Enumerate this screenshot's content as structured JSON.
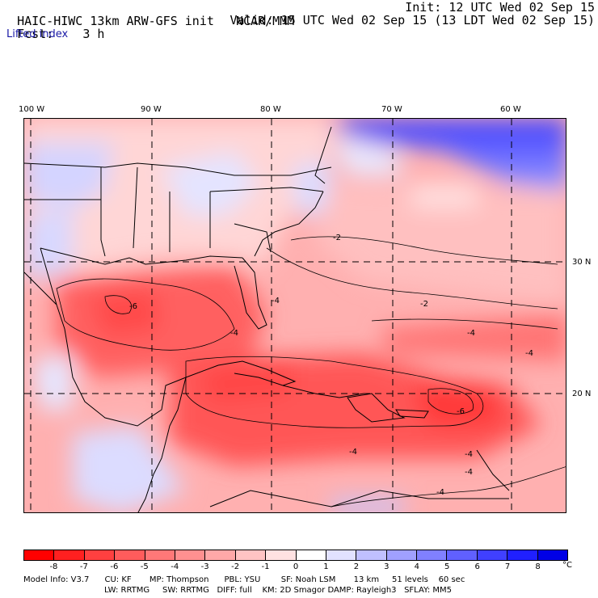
{
  "header": {
    "model_title": "HAIC-HIWC 13km ARW-GFS init",
    "org": "NCAR/MMM",
    "fcst_label": "Fcst:",
    "fcst_value": "3 h",
    "init": "Init: 12 UTC Wed 02 Sep 15",
    "valid": "Valid: 15 UTC Wed 02 Sep 15 (13 LDT Wed 02 Sep 15)",
    "field": "Lifted index"
  },
  "map": {
    "lon_labels": [
      "100 W",
      "90 W",
      "80 W",
      "70 W",
      "60 W"
    ],
    "lat_labels": [
      "30 N",
      "20 N"
    ],
    "contour_labels": [
      "-2",
      "-2",
      "-4",
      "-4",
      "-4",
      "-4",
      "-4",
      "-4",
      "-4",
      "-4",
      "-6",
      "-6"
    ]
  },
  "colorbar": {
    "labels": [
      "-8",
      "-7",
      "-6",
      "-5",
      "-4",
      "-3",
      "-2",
      "-1",
      "0",
      "1",
      "2",
      "3",
      "4",
      "5",
      "6",
      "7",
      "8"
    ],
    "unit": "°C",
    "colors": [
      "#ff0000",
      "#ff2020",
      "#ff4040",
      "#ff5c5c",
      "#ff7878",
      "#ff9090",
      "#ffa8a8",
      "#ffc4c4",
      "#ffe2e2",
      "#ffffff",
      "#e2e2ff",
      "#c0c0ff",
      "#a0a0ff",
      "#8080ff",
      "#6060ff",
      "#4040ff",
      "#2020ff",
      "#0000e6"
    ]
  },
  "footer": {
    "line1": "Model Info: V3.7      CU: KF       MP: Thompson      PBL: YSU        SF: Noah LSM       13 km     51 levels    60 sec",
    "line2": "LW: RRTMG     SW: RRTMG   DIFF: full    KM: 2D Smagor DAMP: Rayleigh3   SFLAY: MM5"
  }
}
